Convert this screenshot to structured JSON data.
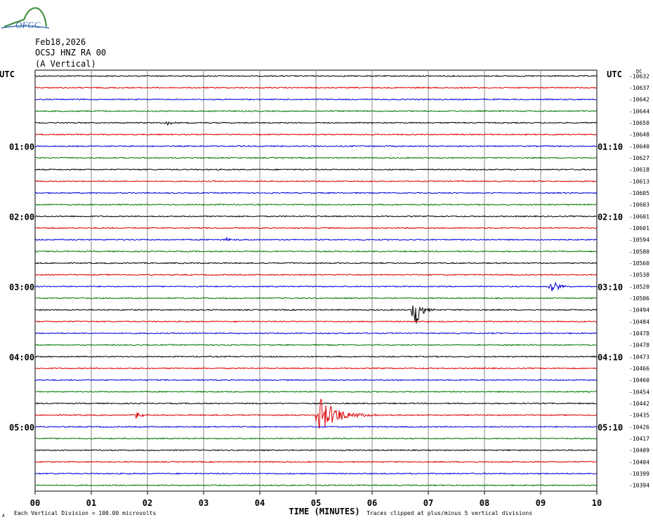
{
  "header": {
    "logo_text": "OFGC",
    "date": "Feb18,2026",
    "station": "OCSJ HNZ RA 00",
    "component": "(A Vertical)"
  },
  "chart_data": {
    "type": "line",
    "title": "",
    "xlabel": "TIME (MINUTES)",
    "xlim": [
      0,
      10
    ],
    "x_ticks": [
      "00",
      "01",
      "02",
      "03",
      "04",
      "05",
      "06",
      "07",
      "08",
      "09",
      "10"
    ],
    "left_axis_label": "UTC",
    "right_axis_label": "UTC",
    "left_time_labels": [
      {
        "row": 6,
        "text": "01:00"
      },
      {
        "row": 12,
        "text": "02:00"
      },
      {
        "row": 18,
        "text": "03:00"
      },
      {
        "row": 24,
        "text": "04:00"
      },
      {
        "row": 30,
        "text": "05:00"
      }
    ],
    "right_time_labels": [
      {
        "row": 6,
        "text": "01:10"
      },
      {
        "row": 12,
        "text": "02:10"
      },
      {
        "row": 18,
        "text": "03:10"
      },
      {
        "row": 24,
        "text": "04:10"
      },
      {
        "row": 30,
        "text": "05:10"
      }
    ],
    "trace_offsets": [
      "-10632",
      "-10637",
      "-10642",
      "-10644",
      "-10650",
      "-10648",
      "-10640",
      "-10627",
      "-10618",
      "-10613",
      "-10605",
      "-10603",
      "-10601",
      "-10601",
      "-10594",
      "-10580",
      "-10560",
      "-10538",
      "-10520",
      "-10506",
      "-10494",
      "-10484",
      "-10478",
      "-10478",
      "-10473",
      "-10466",
      "-10460",
      "-10454",
      "-10442",
      "-10435",
      "-10426",
      "-10417",
      "-10409",
      "-10404",
      "-10399",
      "-10394"
    ],
    "offset_unit": "DC",
    "series_colors": [
      "#000000",
      "#dd0000",
      "#0000dd",
      "#007700"
    ],
    "events": [
      {
        "row": 4,
        "minute": 2.35,
        "amplitude": 0.25,
        "duration": 0.3
      },
      {
        "row": 14,
        "minute": 3.4,
        "amplitude": 0.2,
        "duration": 0.5
      },
      {
        "row": 18,
        "minute": 9.2,
        "amplitude": 0.8,
        "duration": 0.35
      },
      {
        "row": 20,
        "minute": 6.75,
        "amplitude": 1.9,
        "duration": 0.4
      },
      {
        "row": 29,
        "minute": 1.8,
        "amplitude": 0.3,
        "duration": 0.4
      },
      {
        "row": 29,
        "minute": 5.05,
        "amplitude": 1.6,
        "duration": 1.2
      }
    ],
    "footer_scale_text": "Each Vertical Division =  100.00 microvolts",
    "footer_clip_text": "Traces clipped at plus/minus 5 vertical divisions",
    "footer_mark": "A"
  }
}
